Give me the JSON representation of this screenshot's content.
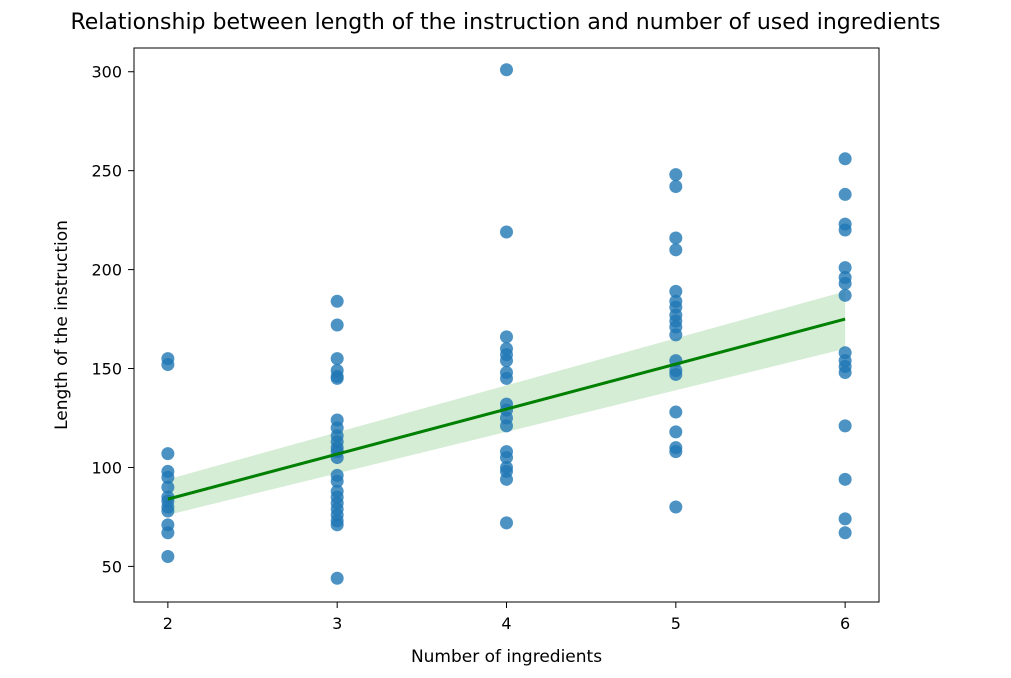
{
  "chart_data": {
    "type": "scatter",
    "title": "Relationship between length of the instruction and number of used ingredients",
    "xlabel": "Number of ingredients",
    "ylabel": "Length of the instruction",
    "xlim": [
      1.8,
      6.2
    ],
    "ylim": [
      32,
      312
    ],
    "xticks": [
      2,
      3,
      4,
      5,
      6
    ],
    "yticks": [
      50,
      100,
      150,
      200,
      250,
      300
    ],
    "grid": false,
    "point_color": "#1f77b4",
    "line_color": "#008000",
    "band_color": "#2ca02c",
    "points": [
      {
        "x": 2,
        "y": 155
      },
      {
        "x": 2,
        "y": 152
      },
      {
        "x": 2,
        "y": 107
      },
      {
        "x": 2,
        "y": 98
      },
      {
        "x": 2,
        "y": 95
      },
      {
        "x": 2,
        "y": 90
      },
      {
        "x": 2,
        "y": 85
      },
      {
        "x": 2,
        "y": 83
      },
      {
        "x": 2,
        "y": 80
      },
      {
        "x": 2,
        "y": 78
      },
      {
        "x": 2,
        "y": 71
      },
      {
        "x": 2,
        "y": 67
      },
      {
        "x": 2,
        "y": 55
      },
      {
        "x": 3,
        "y": 184
      },
      {
        "x": 3,
        "y": 172
      },
      {
        "x": 3,
        "y": 155
      },
      {
        "x": 3,
        "y": 149
      },
      {
        "x": 3,
        "y": 146
      },
      {
        "x": 3,
        "y": 145
      },
      {
        "x": 3,
        "y": 124
      },
      {
        "x": 3,
        "y": 120
      },
      {
        "x": 3,
        "y": 116
      },
      {
        "x": 3,
        "y": 113
      },
      {
        "x": 3,
        "y": 110
      },
      {
        "x": 3,
        "y": 108
      },
      {
        "x": 3,
        "y": 105
      },
      {
        "x": 3,
        "y": 96
      },
      {
        "x": 3,
        "y": 93
      },
      {
        "x": 3,
        "y": 88
      },
      {
        "x": 3,
        "y": 85
      },
      {
        "x": 3,
        "y": 82
      },
      {
        "x": 3,
        "y": 79
      },
      {
        "x": 3,
        "y": 76
      },
      {
        "x": 3,
        "y": 73
      },
      {
        "x": 3,
        "y": 71
      },
      {
        "x": 3,
        "y": 44
      },
      {
        "x": 4,
        "y": 301
      },
      {
        "x": 4,
        "y": 219
      },
      {
        "x": 4,
        "y": 166
      },
      {
        "x": 4,
        "y": 160
      },
      {
        "x": 4,
        "y": 157
      },
      {
        "x": 4,
        "y": 154
      },
      {
        "x": 4,
        "y": 148
      },
      {
        "x": 4,
        "y": 145
      },
      {
        "x": 4,
        "y": 132
      },
      {
        "x": 4,
        "y": 129
      },
      {
        "x": 4,
        "y": 125
      },
      {
        "x": 4,
        "y": 121
      },
      {
        "x": 4,
        "y": 108
      },
      {
        "x": 4,
        "y": 105
      },
      {
        "x": 4,
        "y": 100
      },
      {
        "x": 4,
        "y": 98
      },
      {
        "x": 4,
        "y": 94
      },
      {
        "x": 4,
        "y": 72
      },
      {
        "x": 5,
        "y": 248
      },
      {
        "x": 5,
        "y": 242
      },
      {
        "x": 5,
        "y": 216
      },
      {
        "x": 5,
        "y": 210
      },
      {
        "x": 5,
        "y": 189
      },
      {
        "x": 5,
        "y": 184
      },
      {
        "x": 5,
        "y": 181
      },
      {
        "x": 5,
        "y": 177
      },
      {
        "x": 5,
        "y": 174
      },
      {
        "x": 5,
        "y": 171
      },
      {
        "x": 5,
        "y": 167
      },
      {
        "x": 5,
        "y": 154
      },
      {
        "x": 5,
        "y": 149
      },
      {
        "x": 5,
        "y": 147
      },
      {
        "x": 5,
        "y": 128
      },
      {
        "x": 5,
        "y": 118
      },
      {
        "x": 5,
        "y": 110
      },
      {
        "x": 5,
        "y": 108
      },
      {
        "x": 5,
        "y": 80
      },
      {
        "x": 6,
        "y": 256
      },
      {
        "x": 6,
        "y": 238
      },
      {
        "x": 6,
        "y": 223
      },
      {
        "x": 6,
        "y": 220
      },
      {
        "x": 6,
        "y": 201
      },
      {
        "x": 6,
        "y": 196
      },
      {
        "x": 6,
        "y": 193
      },
      {
        "x": 6,
        "y": 187
      },
      {
        "x": 6,
        "y": 158
      },
      {
        "x": 6,
        "y": 154
      },
      {
        "x": 6,
        "y": 151
      },
      {
        "x": 6,
        "y": 148
      },
      {
        "x": 6,
        "y": 121
      },
      {
        "x": 6,
        "y": 94
      },
      {
        "x": 6,
        "y": 74
      },
      {
        "x": 6,
        "y": 67
      }
    ],
    "regression": {
      "x": [
        2,
        6
      ],
      "y": [
        84,
        175
      ],
      "ci_lower": [
        76,
        160
      ],
      "ci_upper": [
        94,
        189
      ]
    }
  }
}
